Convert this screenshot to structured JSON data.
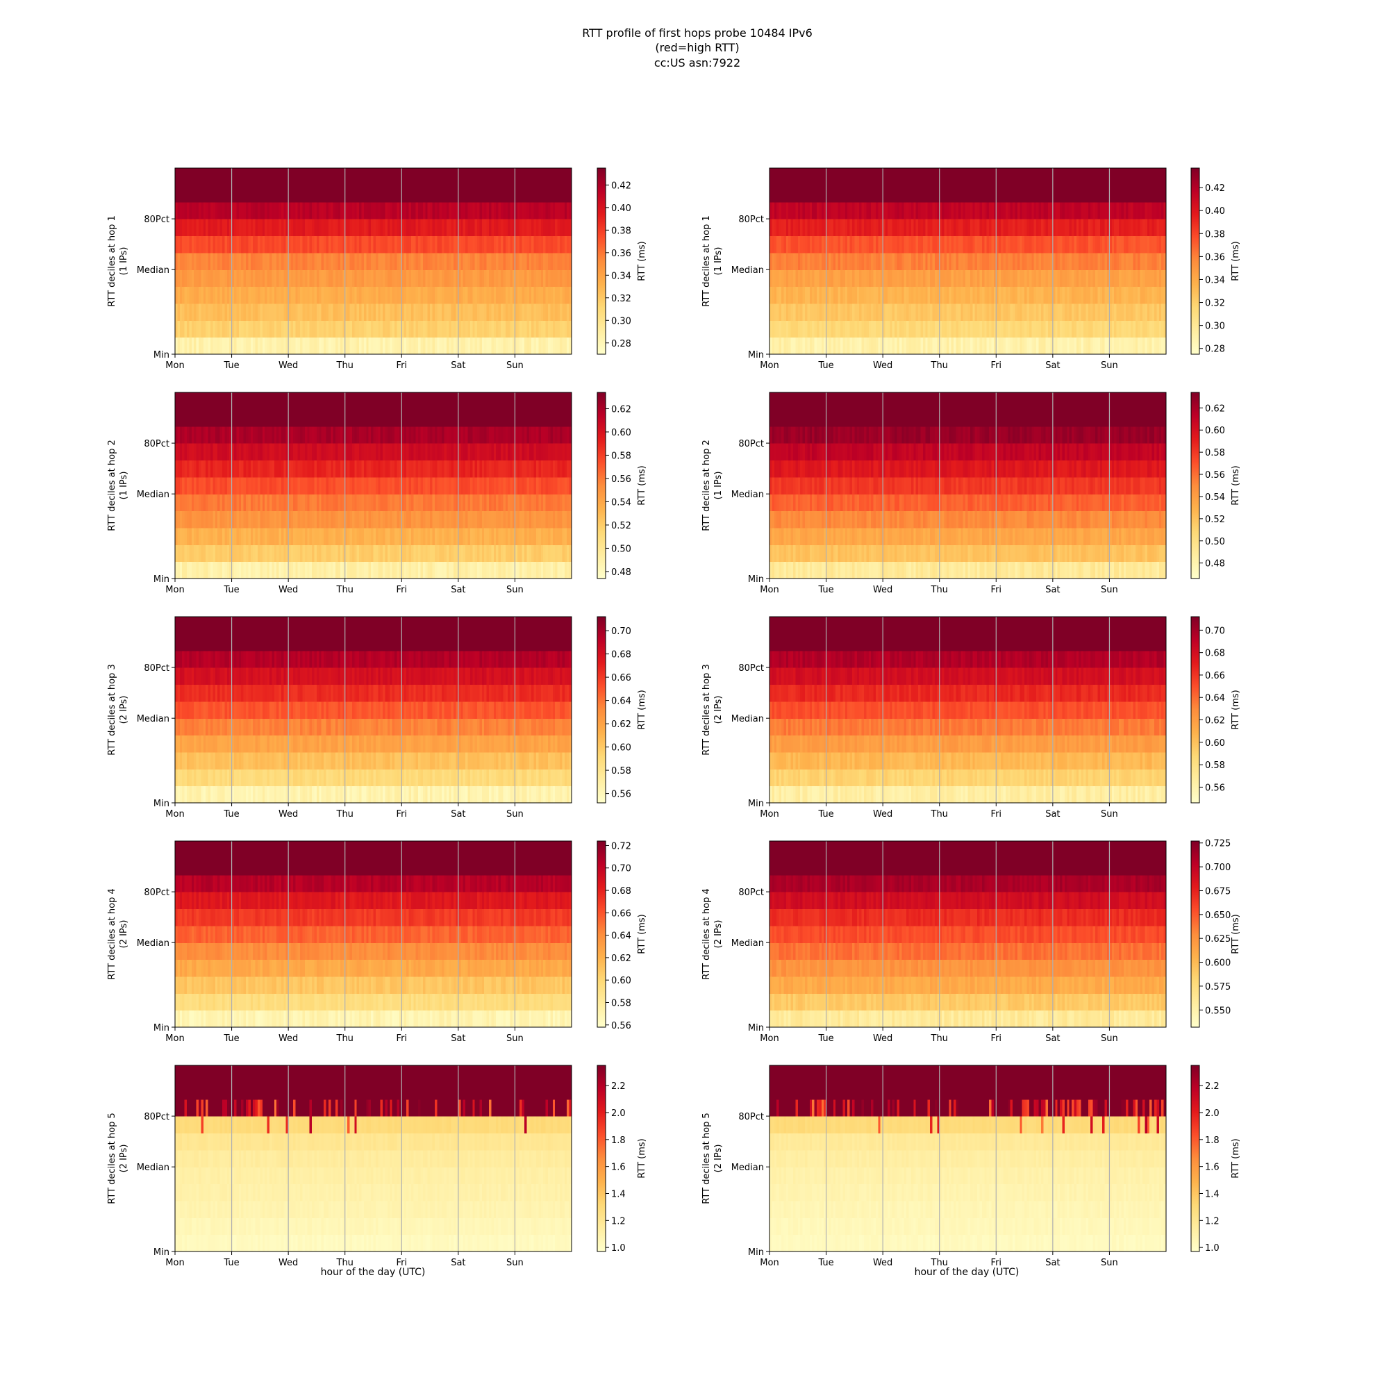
{
  "figure": {
    "title_lines": [
      "RTT profile of first hops probe 10484 IPv6",
      "(red=high RTT)",
      "cc:US asn:7922"
    ],
    "xlabel": "hour of the day (UTC)"
  },
  "chart_data": [
    {
      "type": "heatmap",
      "hop": 1,
      "column": "left",
      "ylabel": "RTT deciles at hop 1",
      "ylabel_sub": "(1 IPs)",
      "colorbar_label": "RTT (ms)",
      "x_ticks": [
        "Mon",
        "Tue",
        "Wed",
        "Thu",
        "Fri",
        "Sat",
        "Sun"
      ],
      "y_ticks": [
        "Min",
        "Median",
        "80Pct"
      ],
      "color_range": [
        0.27,
        0.435
      ],
      "colorbar_ticks": [
        "0.28",
        "0.30",
        "0.32",
        "0.34",
        "0.36",
        "0.38",
        "0.40",
        "0.42"
      ],
      "decile_values": [
        0.285,
        0.315,
        0.325,
        0.335,
        0.345,
        0.355,
        0.375,
        0.395,
        0.415,
        0.435
      ]
    },
    {
      "type": "heatmap",
      "hop": 1,
      "column": "right",
      "ylabel": "RTT deciles at hop 1",
      "ylabel_sub": "(1 IPs)",
      "colorbar_label": "RTT (ms)",
      "x_ticks": [
        "Mon",
        "Tue",
        "Wed",
        "Thu",
        "Fri",
        "Sat",
        "Sun"
      ],
      "y_ticks": [
        "Min",
        "Median",
        "80Pct"
      ],
      "color_range": [
        0.275,
        0.437
      ],
      "colorbar_ticks": [
        "0.28",
        "0.30",
        "0.32",
        "0.34",
        "0.36",
        "0.38",
        "0.40",
        "0.42"
      ],
      "decile_values": [
        0.29,
        0.315,
        0.325,
        0.335,
        0.345,
        0.36,
        0.375,
        0.395,
        0.415,
        0.437
      ]
    },
    {
      "type": "heatmap",
      "hop": 2,
      "column": "left",
      "ylabel": "RTT deciles at hop 2",
      "ylabel_sub": "(1 IPs)",
      "colorbar_label": "RTT (ms)",
      "x_ticks": [
        "Mon",
        "Tue",
        "Wed",
        "Thu",
        "Fri",
        "Sat",
        "Sun"
      ],
      "y_ticks": [
        "Min",
        "Median",
        "80Pct"
      ],
      "color_range": [
        0.474,
        0.634
      ],
      "colorbar_ticks": [
        "0.48",
        "0.50",
        "0.52",
        "0.54",
        "0.56",
        "0.58",
        "0.60",
        "0.62"
      ],
      "decile_values": [
        0.49,
        0.52,
        0.535,
        0.55,
        0.56,
        0.575,
        0.59,
        0.605,
        0.62,
        0.634
      ]
    },
    {
      "type": "heatmap",
      "hop": 2,
      "column": "right",
      "ylabel": "RTT deciles at hop 2",
      "ylabel_sub": "(1 IPs)",
      "colorbar_label": "RTT (ms)",
      "x_ticks": [
        "Mon",
        "Tue",
        "Wed",
        "Thu",
        "Fri",
        "Sat",
        "Sun"
      ],
      "y_ticks": [
        "Min",
        "Median",
        "80Pct"
      ],
      "color_range": [
        0.466,
        0.634
      ],
      "colorbar_ticks": [
        "0.48",
        "0.50",
        "0.52",
        "0.54",
        "0.56",
        "0.58",
        "0.60",
        "0.62"
      ],
      "decile_values": [
        0.49,
        0.52,
        0.535,
        0.55,
        0.565,
        0.58,
        0.595,
        0.61,
        0.625,
        0.634
      ]
    },
    {
      "type": "heatmap",
      "hop": 3,
      "column": "left",
      "ylabel": "RTT deciles at hop 3",
      "ylabel_sub": "(2 IPs)",
      "colorbar_label": "RTT (ms)",
      "x_ticks": [
        "Mon",
        "Tue",
        "Wed",
        "Thu",
        "Fri",
        "Sat",
        "Sun"
      ],
      "y_ticks": [
        "Min",
        "Median",
        "80Pct"
      ],
      "color_range": [
        0.552,
        0.712
      ],
      "colorbar_ticks": [
        "0.56",
        "0.58",
        "0.60",
        "0.62",
        "0.64",
        "0.66",
        "0.68",
        "0.70"
      ],
      "decile_values": [
        0.565,
        0.59,
        0.605,
        0.62,
        0.635,
        0.65,
        0.665,
        0.68,
        0.695,
        0.712
      ]
    },
    {
      "type": "heatmap",
      "hop": 3,
      "column": "right",
      "ylabel": "RTT deciles at hop 3",
      "ylabel_sub": "(2 IPs)",
      "colorbar_label": "RTT (ms)",
      "x_ticks": [
        "Mon",
        "Tue",
        "Wed",
        "Thu",
        "Fri",
        "Sat",
        "Sun"
      ],
      "y_ticks": [
        "Min",
        "Median",
        "80Pct"
      ],
      "color_range": [
        0.546,
        0.712
      ],
      "colorbar_ticks": [
        "0.56",
        "0.58",
        "0.60",
        "0.62",
        "0.64",
        "0.66",
        "0.68",
        "0.70"
      ],
      "decile_values": [
        0.565,
        0.59,
        0.605,
        0.62,
        0.635,
        0.65,
        0.665,
        0.68,
        0.695,
        0.712
      ]
    },
    {
      "type": "heatmap",
      "hop": 4,
      "column": "left",
      "ylabel": "RTT deciles at hop 4",
      "ylabel_sub": "(2 IPs)",
      "colorbar_label": "RTT (ms)",
      "x_ticks": [
        "Mon",
        "Tue",
        "Wed",
        "Thu",
        "Fri",
        "Sat",
        "Sun"
      ],
      "y_ticks": [
        "Min",
        "Median",
        "80Pct"
      ],
      "color_range": [
        0.558,
        0.724
      ],
      "colorbar_ticks": [
        "0.56",
        "0.58",
        "0.60",
        "0.62",
        "0.64",
        "0.66",
        "0.68",
        "0.70",
        "0.72"
      ],
      "decile_values": [
        0.57,
        0.595,
        0.61,
        0.625,
        0.64,
        0.655,
        0.67,
        0.685,
        0.705,
        0.724
      ]
    },
    {
      "type": "heatmap",
      "hop": 4,
      "column": "right",
      "ylabel": "RTT deciles at hop 4",
      "ylabel_sub": "(2 IPs)",
      "colorbar_label": "RTT (ms)",
      "x_ticks": [
        "Mon",
        "Tue",
        "Wed",
        "Thu",
        "Fri",
        "Sat",
        "Sun"
      ],
      "y_ticks": [
        "Min",
        "Median",
        "80Pct"
      ],
      "color_range": [
        0.532,
        0.727
      ],
      "colorbar_ticks": [
        "0.550",
        "0.575",
        "0.600",
        "0.625",
        "0.650",
        "0.675",
        "0.700",
        "0.725"
      ],
      "decile_values": [
        0.56,
        0.59,
        0.61,
        0.625,
        0.64,
        0.655,
        0.67,
        0.69,
        0.71,
        0.727
      ]
    },
    {
      "type": "heatmap",
      "hop": 5,
      "column": "left",
      "ylabel": "RTT deciles at hop 5",
      "ylabel_sub": "(2 IPs)",
      "colorbar_label": "RTT (ms)",
      "x_ticks": [
        "Mon",
        "Tue",
        "Wed",
        "Thu",
        "Fri",
        "Sat",
        "Sun"
      ],
      "y_ticks": [
        "Min",
        "Median",
        "80Pct"
      ],
      "color_range": [
        0.97,
        2.35
      ],
      "colorbar_ticks": [
        "1.0",
        "1.2",
        "1.4",
        "1.6",
        "1.8",
        "2.0",
        "2.2"
      ],
      "decile_values": [
        1.02,
        1.05,
        1.08,
        1.1,
        1.12,
        1.15,
        1.2,
        1.3,
        2.3,
        2.35
      ]
    },
    {
      "type": "heatmap",
      "hop": 5,
      "column": "right",
      "ylabel": "RTT deciles at hop 5",
      "ylabel_sub": "(2 IPs)",
      "colorbar_label": "RTT (ms)",
      "x_ticks": [
        "Mon",
        "Tue",
        "Wed",
        "Thu",
        "Fri",
        "Sat",
        "Sun"
      ],
      "y_ticks": [
        "Min",
        "Median",
        "80Pct"
      ],
      "color_range": [
        0.97,
        2.35
      ],
      "colorbar_ticks": [
        "1.0",
        "1.2",
        "1.4",
        "1.6",
        "1.8",
        "2.0",
        "2.2"
      ],
      "decile_values": [
        1.02,
        1.04,
        1.06,
        1.08,
        1.1,
        1.13,
        1.17,
        1.3,
        2.3,
        2.35
      ]
    }
  ]
}
